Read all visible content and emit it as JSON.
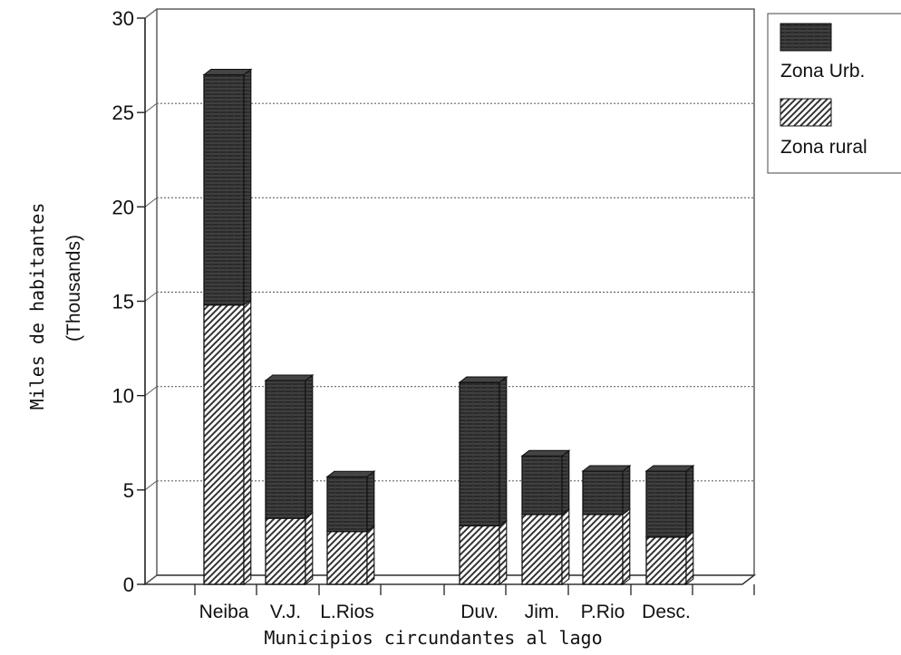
{
  "chart_data": {
    "type": "bar",
    "stacked": true,
    "three_d": true,
    "categories": [
      "Neiba",
      "V.J.",
      "L.Rios",
      "Duv.",
      "Jim.",
      "P.Rio",
      "Desc."
    ],
    "series": [
      {
        "name": "Zona rural",
        "values": [
          14.8,
          3.5,
          2.8,
          3.1,
          3.7,
          3.7,
          2.5
        ]
      },
      {
        "name": "Zona Urb.",
        "values": [
          12.2,
          7.3,
          2.9,
          7.6,
          3.1,
          2.3,
          3.5
        ]
      }
    ],
    "ylabel": "Miles de habitantes",
    "ylabel2": "(Thousands)",
    "xlabel": "Municipios circundantes al lago",
    "ylim": [
      0,
      30
    ],
    "yticks": [
      0,
      5,
      10,
      15,
      20,
      25,
      30
    ],
    "grid": true,
    "legend_position": "right"
  },
  "colors": {
    "zona_urb": "#2a2a2a",
    "zona_rural": "#9a9a9a",
    "grid": "#666666"
  }
}
